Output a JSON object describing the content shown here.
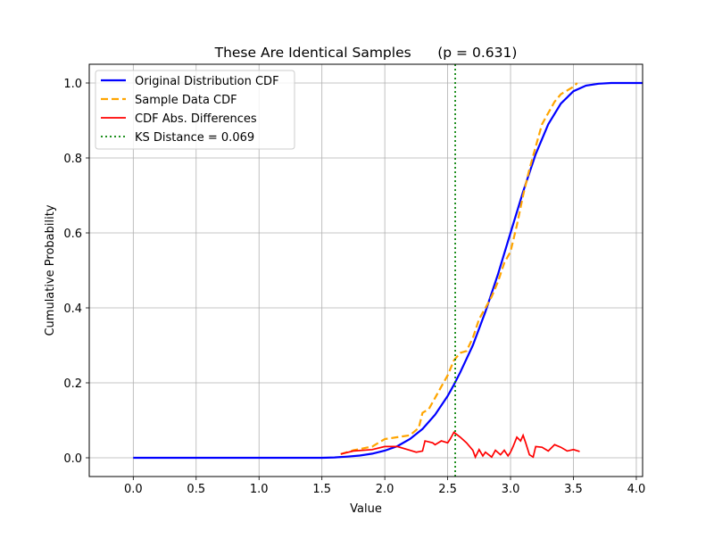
{
  "chart_data": {
    "type": "line",
    "title": "These Are Identical Samples      (p = 0.631)",
    "xlabel": "Value",
    "ylabel": "Cumulative Probability",
    "xlim": [
      -0.35,
      4.05
    ],
    "ylim": [
      -0.05,
      1.05
    ],
    "xticks": [
      0.0,
      0.5,
      1.0,
      1.5,
      2.0,
      2.5,
      3.0,
      3.5,
      4.0
    ],
    "xtick_labels": [
      "0.0",
      "0.5",
      "1.0",
      "1.5",
      "2.0",
      "2.5",
      "3.0",
      "3.5",
      "4.0"
    ],
    "yticks": [
      0.0,
      0.2,
      0.4,
      0.6,
      0.8,
      1.0
    ],
    "ytick_labels": [
      "0.0",
      "0.2",
      "0.4",
      "0.6",
      "0.8",
      "1.0"
    ],
    "grid": true,
    "legend_position": "upper-left",
    "series": [
      {
        "name": "Original Distribution CDF",
        "color": "#0000ff",
        "style": "solid",
        "x": [
          0.0,
          1.0,
          1.5,
          1.6,
          1.7,
          1.8,
          1.9,
          2.0,
          2.1,
          2.2,
          2.3,
          2.4,
          2.5,
          2.55,
          2.6,
          2.7,
          2.8,
          2.9,
          3.0,
          3.1,
          3.2,
          3.3,
          3.4,
          3.5,
          3.6,
          3.7,
          3.8,
          4.05
        ],
        "y": [
          0.0,
          0.0,
          0.0,
          0.001,
          0.003,
          0.006,
          0.011,
          0.019,
          0.031,
          0.05,
          0.077,
          0.115,
          0.165,
          0.195,
          0.228,
          0.3,
          0.39,
          0.49,
          0.6,
          0.71,
          0.81,
          0.89,
          0.945,
          0.978,
          0.993,
          0.998,
          1.0,
          1.0
        ]
      },
      {
        "name": "Sample Data CDF",
        "color": "#ffa500",
        "style": "dashed",
        "x": [
          1.65,
          1.75,
          1.9,
          2.0,
          2.1,
          2.2,
          2.27,
          2.3,
          2.35,
          2.4,
          2.45,
          2.5,
          2.55,
          2.6,
          2.65,
          2.7,
          2.75,
          2.8,
          2.85,
          2.9,
          2.95,
          3.0,
          3.05,
          3.1,
          3.15,
          3.2,
          3.25,
          3.3,
          3.35,
          3.4,
          3.45,
          3.5,
          3.53
        ],
        "y": [
          0.01,
          0.02,
          0.03,
          0.05,
          0.055,
          0.06,
          0.08,
          0.12,
          0.13,
          0.16,
          0.19,
          0.22,
          0.26,
          0.28,
          0.285,
          0.32,
          0.37,
          0.4,
          0.43,
          0.47,
          0.52,
          0.55,
          0.62,
          0.7,
          0.77,
          0.83,
          0.89,
          0.92,
          0.95,
          0.97,
          0.98,
          0.99,
          1.0
        ]
      },
      {
        "name": "CDF Abs. Differences",
        "color": "#ff0000",
        "style": "solid",
        "x": [
          1.65,
          1.75,
          1.9,
          2.0,
          2.1,
          2.2,
          2.25,
          2.3,
          2.32,
          2.38,
          2.4,
          2.45,
          2.5,
          2.52,
          2.55,
          2.6,
          2.65,
          2.7,
          2.72,
          2.75,
          2.78,
          2.8,
          2.85,
          2.88,
          2.92,
          2.95,
          2.98,
          3.0,
          3.02,
          3.05,
          3.08,
          3.1,
          3.12,
          3.15,
          3.18,
          3.2,
          3.25,
          3.3,
          3.35,
          3.4,
          3.45,
          3.5,
          3.55
        ],
        "y": [
          0.01,
          0.018,
          0.022,
          0.03,
          0.03,
          0.02,
          0.015,
          0.018,
          0.045,
          0.04,
          0.035,
          0.045,
          0.04,
          0.05,
          0.068,
          0.055,
          0.04,
          0.02,
          0.002,
          0.022,
          0.005,
          0.015,
          0.002,
          0.02,
          0.008,
          0.02,
          0.005,
          0.015,
          0.03,
          0.055,
          0.045,
          0.06,
          0.04,
          0.008,
          0.002,
          0.03,
          0.028,
          0.018,
          0.035,
          0.028,
          0.018,
          0.022,
          0.017
        ]
      },
      {
        "name": "KS Distance = 0.069",
        "color": "#008000",
        "style": "dotted",
        "vline_x": 2.56
      }
    ]
  }
}
